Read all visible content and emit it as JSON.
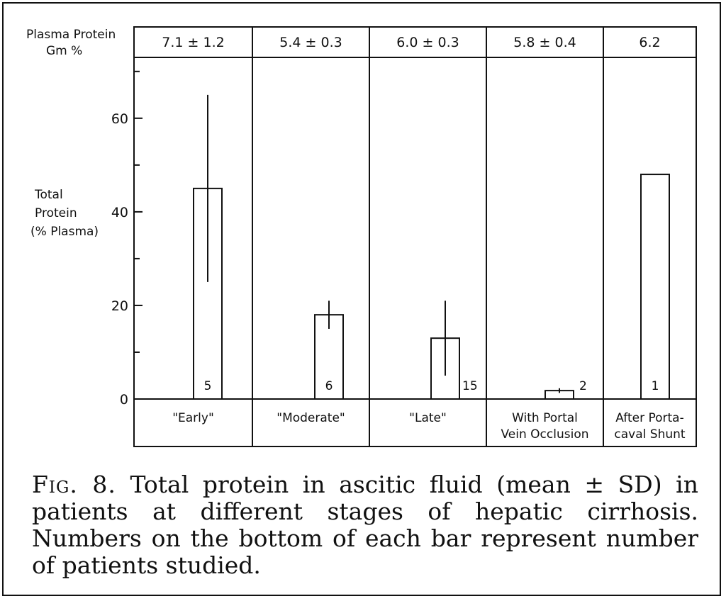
{
  "chart_data": {
    "type": "bar",
    "ylabel": [
      "Total",
      "Protein",
      "(% Plasma)"
    ],
    "ylim": [
      0,
      73
    ],
    "yticks": [
      0,
      20,
      40,
      60
    ],
    "grid": false,
    "protein_header": [
      "Plasma Protein",
      "Gm %"
    ],
    "categories": [
      [
        "\"Early\""
      ],
      [
        "\"Moderate\""
      ],
      [
        "\"Late\""
      ],
      [
        "With Portal",
        "Vein Occlusion"
      ],
      [
        "After Porta-",
        "caval Shunt"
      ]
    ],
    "plasma_protein": [
      "7.1 ± 1.2",
      "5.4 ± 0.3",
      "6.0 ± 0.3",
      "5.8 ± 0.4",
      "6.2"
    ],
    "values": [
      45,
      18,
      13,
      1.8,
      48
    ],
    "sd": [
      20,
      3,
      8,
      0.5,
      null
    ],
    "n_patients": [
      "5",
      "6",
      "15",
      "2",
      "1"
    ]
  },
  "caption": {
    "fig_label": "Fig. 8.",
    "text": "Total protein in ascitic fluid (mean ± SD) in patients at different stages of hepatic cirrhosis. Numbers on the bottom of each bar represent number of patients studied."
  }
}
